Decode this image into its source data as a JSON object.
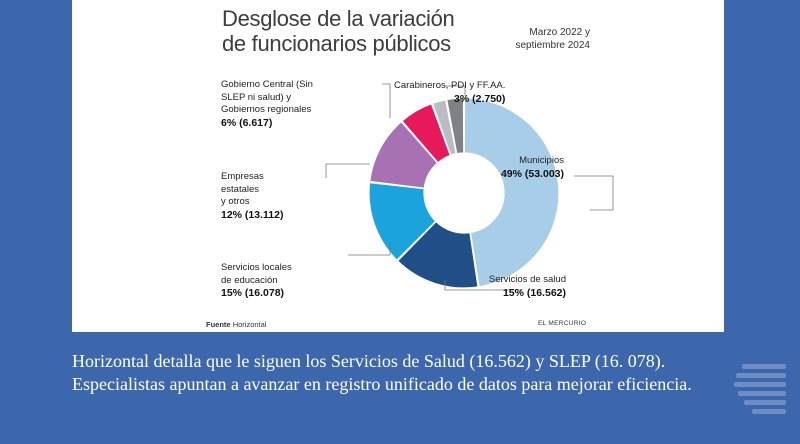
{
  "chart_data": {
    "type": "pie",
    "title": "Desglose de la variación de funcionarios públicos",
    "subtitle": "Marzo 2022 y septiembre 2024",
    "slices": [
      {
        "name": "Municipios",
        "percent_label": "49%",
        "value_label": "(53.003)",
        "value": 53003,
        "color": "#a8cde8"
      },
      {
        "name": "Servicios de salud",
        "percent_label": "15%",
        "value_label": "(16.562)",
        "value": 16562,
        "color": "#1f4f86"
      },
      {
        "name": "Servicios locales de educación",
        "percent_label": "15%",
        "value_label": "(16.078)",
        "value": 16078,
        "color": "#1aa3dd"
      },
      {
        "name": "Empresas estatales y otros",
        "percent_label": "12%",
        "value_label": "(13.112)",
        "value": 13112,
        "color": "#a871b4"
      },
      {
        "name": "Gobierno Central (Sin SLEP ni salud) y Gobiernos regionales",
        "percent_label": "6%",
        "value_label": "(6.617)",
        "value": 6617,
        "color": "#e8195a"
      },
      {
        "name": "Carabineros, PDI y FF.AA.",
        "percent_label": "3%",
        "value_label": "(2.750)",
        "value": 2750,
        "color": "#b9bcc2"
      }
    ],
    "extra_wedge_color": "#7f8186",
    "legend": "none"
  },
  "labels": {
    "carabineros": {
      "name": "Carabineros, PDI y FF.AA.",
      "value": "3% (2.750)"
    },
    "municipios": {
      "name": "Municipios",
      "value": "49% (53.003)"
    },
    "salud": {
      "name": "Servicios de salud",
      "value": "15% (16.562)"
    },
    "educacion": {
      "name1": "Servicios locales",
      "name2": "de educación",
      "value": "15% (16.078)"
    },
    "empresas": {
      "name1": "Empresas",
      "name2": "estatales",
      "name3": "y otros",
      "value": "12% (13.112)"
    },
    "gobierno": {
      "name1": "Gobierno Central (Sin",
      "name2": "SLEP ni salud) y",
      "name3": "Gobiernos regionales",
      "value": "6% (6.617)"
    }
  },
  "footer": {
    "source_label": "Fuente",
    "source_value": "Horizontal",
    "brand": "EL MERCURIO"
  },
  "caption": "Horizontal detalla que le siguen los Servicios de Salud (16.562) y SLEP (16. 078). Especialistas apuntan a avanzar en registro unificado de datos para mejorar eficiencia."
}
